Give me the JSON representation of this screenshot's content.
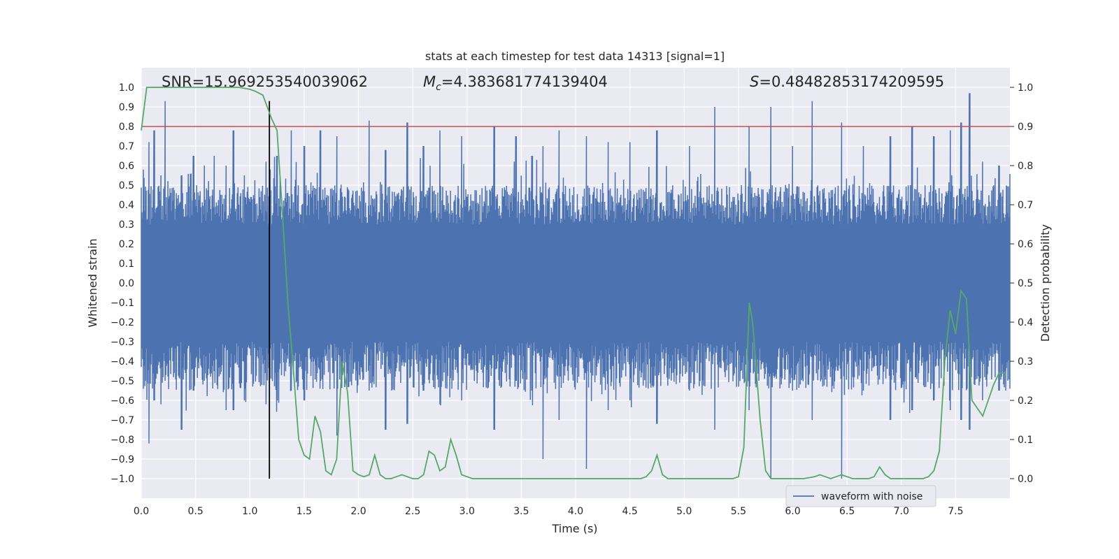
{
  "chart_data": {
    "type": "line",
    "title": "stats at each timestep for test data 14313 [signal=1]",
    "xlabel": "Time (s)",
    "ylabel": "Whitened strain",
    "ylabel_right": "Detection probability",
    "xlim": [
      0.0,
      8.0
    ],
    "ylim": [
      -1.1,
      1.1
    ],
    "ylim_right": [
      -0.05,
      1.05
    ],
    "x_ticks": [
      "0.0",
      "0.5",
      "1.0",
      "1.5",
      "2.0",
      "2.5",
      "3.0",
      "3.5",
      "4.0",
      "4.5",
      "5.0",
      "5.5",
      "6.0",
      "6.5",
      "7.0",
      "7.5"
    ],
    "y_ticks": [
      "1.0",
      "0.9",
      "0.8",
      "0.7",
      "0.6",
      "0.5",
      "0.4",
      "0.3",
      "0.2",
      "0.1",
      "0.0",
      "-0.1",
      "-0.2",
      "-0.3",
      "-0.4",
      "-0.5",
      "-0.6",
      "-0.7",
      "-0.8",
      "-0.9",
      "-1.0"
    ],
    "y_ticks_right": [
      "1.0",
      "0.9",
      "0.8",
      "0.7",
      "0.6",
      "0.5",
      "0.4",
      "0.3",
      "0.2",
      "0.1",
      "0.0"
    ],
    "grid": true,
    "legend_position": "bottom-right",
    "annotations": {
      "snr": "SNR=15.969253540039062",
      "mc_symbol": "M",
      "mc_sub": "c",
      "mc_value": "=4.383681774139404",
      "s_symbol": "S",
      "s_value": "=0.48482853174209595"
    },
    "series": [
      {
        "name": "waveform with noise",
        "color": "#4c72b0",
        "axis": "left",
        "envelope_typical": 0.5,
        "envelope_peaks": [
          [
            0.02,
            0.58,
            -0.45
          ],
          [
            0.07,
            0.72,
            -0.82
          ],
          [
            0.12,
            0.78,
            -0.6
          ],
          [
            0.18,
            0.55,
            -0.62
          ],
          [
            0.22,
            0.93,
            -0.5
          ],
          [
            0.37,
            0.55,
            -0.75
          ],
          [
            0.48,
            0.65,
            -0.55
          ],
          [
            0.58,
            0.6,
            -0.5
          ],
          [
            0.67,
            0.65,
            -0.45
          ],
          [
            0.78,
            0.6,
            -0.65
          ],
          [
            0.85,
            0.78,
            -0.65
          ],
          [
            0.95,
            0.55,
            -0.6
          ],
          [
            1.15,
            0.62,
            -0.62
          ],
          [
            1.25,
            0.65,
            -0.6
          ],
          [
            1.38,
            0.78,
            -0.55
          ],
          [
            1.5,
            0.7,
            -0.6
          ],
          [
            1.65,
            0.78,
            -0.5
          ],
          [
            1.8,
            0.75,
            -0.78
          ],
          [
            2.1,
            0.83,
            -0.55
          ],
          [
            2.25,
            0.68,
            -0.75
          ],
          [
            2.45,
            0.82,
            -0.72
          ],
          [
            2.6,
            0.7,
            -0.55
          ],
          [
            2.75,
            0.78,
            -0.62
          ],
          [
            2.95,
            0.75,
            -0.6
          ],
          [
            3.25,
            0.8,
            -0.75
          ],
          [
            3.45,
            0.75,
            -0.5
          ],
          [
            3.6,
            0.65,
            -0.55
          ],
          [
            3.7,
            0.7,
            -0.9
          ],
          [
            3.85,
            0.78,
            -0.7
          ],
          [
            4.1,
            0.75,
            -0.95
          ],
          [
            4.3,
            0.72,
            -0.65
          ],
          [
            4.5,
            0.72,
            -0.6
          ],
          [
            4.75,
            0.78,
            -0.72
          ],
          [
            5.05,
            0.7,
            -0.55
          ],
          [
            5.28,
            0.9,
            -0.75
          ],
          [
            5.6,
            0.8,
            -0.65
          ],
          [
            5.8,
            0.9,
            -1.0
          ],
          [
            6.0,
            0.7,
            -0.55
          ],
          [
            6.18,
            0.93,
            -0.7
          ],
          [
            6.45,
            0.82,
            -1.0
          ],
          [
            6.65,
            0.7,
            -0.55
          ],
          [
            6.9,
            0.75,
            -0.7
          ],
          [
            7.1,
            0.8,
            -0.65
          ],
          [
            7.3,
            0.75,
            -0.6
          ],
          [
            7.45,
            0.78,
            -0.65
          ],
          [
            7.55,
            0.82,
            -0.7
          ],
          [
            7.63,
            0.97,
            -0.75
          ],
          [
            7.75,
            0.62,
            -0.6
          ],
          [
            7.9,
            0.6,
            -0.55
          ]
        ]
      },
      {
        "name": "",
        "color": "#55a868",
        "axis": "right",
        "x": [
          0.0,
          0.05,
          0.1,
          0.2,
          0.3,
          0.5,
          0.7,
          0.9,
          1.0,
          1.05,
          1.12,
          1.2,
          1.25,
          1.3,
          1.35,
          1.4,
          1.45,
          1.5,
          1.55,
          1.6,
          1.65,
          1.7,
          1.75,
          1.8,
          1.85,
          1.9,
          1.95,
          2.0,
          2.05,
          2.1,
          2.15,
          2.2,
          2.25,
          2.3,
          2.35,
          2.4,
          2.45,
          2.5,
          2.55,
          2.6,
          2.65,
          2.7,
          2.75,
          2.8,
          2.85,
          2.9,
          2.95,
          3.0,
          3.05,
          3.1,
          3.2,
          3.3,
          3.5,
          4.0,
          4.4,
          4.5,
          4.6,
          4.65,
          4.7,
          4.75,
          4.8,
          4.85,
          4.9,
          5.0,
          5.2,
          5.45,
          5.5,
          5.55,
          5.6,
          5.63,
          5.7,
          5.75,
          5.8,
          5.85,
          5.9,
          6.0,
          6.1,
          6.2,
          6.25,
          6.3,
          6.35,
          6.4,
          6.45,
          6.5,
          6.55,
          6.6,
          6.65,
          6.7,
          6.75,
          6.8,
          6.85,
          6.9,
          6.95,
          7.0,
          7.1,
          7.2,
          7.25,
          7.3,
          7.35,
          7.4,
          7.45,
          7.5,
          7.55,
          7.6,
          7.65,
          7.7,
          7.75,
          7.8,
          7.85,
          7.9,
          7.95
        ],
        "values": [
          0.89,
          1.0,
          1.0,
          1.0,
          1.0,
          1.0,
          1.0,
          1.0,
          0.995,
          0.99,
          0.98,
          0.92,
          0.89,
          0.68,
          0.45,
          0.28,
          0.1,
          0.06,
          0.05,
          0.16,
          0.12,
          0.02,
          0.01,
          0.05,
          0.3,
          0.22,
          0.02,
          0.01,
          0.005,
          0.01,
          0.06,
          0.01,
          0.0,
          0.0,
          0.005,
          0.01,
          0.005,
          0.0,
          0.0,
          0.01,
          0.07,
          0.06,
          0.02,
          0.03,
          0.1,
          0.06,
          0.01,
          0.005,
          0.0,
          0.0,
          0.0,
          0.0,
          0.0,
          0.0,
          0.0,
          0.0,
          0.0,
          0.005,
          0.02,
          0.06,
          0.01,
          0.0,
          0.0,
          0.0,
          0.0,
          0.0,
          0.005,
          0.08,
          0.45,
          0.4,
          0.15,
          0.02,
          0.0,
          0.0,
          0.0,
          0.0,
          0.0,
          0.005,
          0.01,
          0.005,
          0.0,
          0.005,
          0.01,
          0.005,
          0.0,
          0.0,
          0.0,
          0.0,
          0.005,
          0.03,
          0.01,
          0.0,
          0.0,
          0.0,
          0.0,
          0.0,
          0.005,
          0.02,
          0.07,
          0.3,
          0.43,
          0.37,
          0.48,
          0.46,
          0.2,
          0.18,
          0.16,
          0.2,
          0.24,
          0.27,
          0.27
        ]
      }
    ],
    "threshold": {
      "value": 0.9,
      "axis": "right",
      "color": "#c44e52"
    },
    "marker_x": 1.18
  }
}
